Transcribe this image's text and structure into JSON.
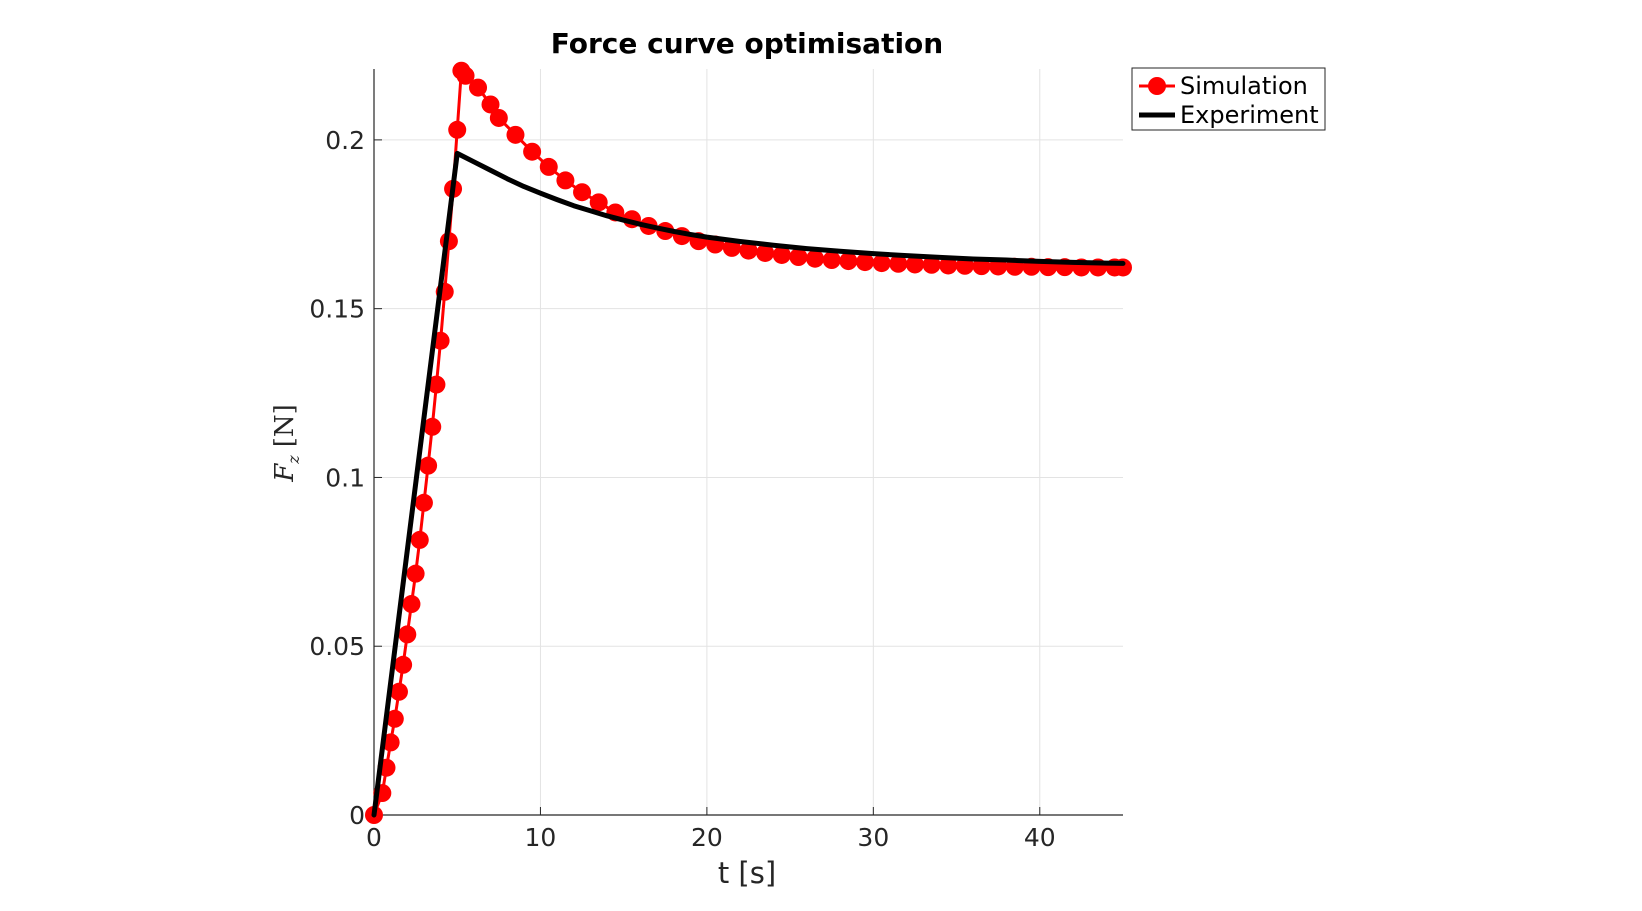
{
  "chart_data": {
    "type": "line",
    "title": "Force curve optimisation",
    "xlabel": "t [s]",
    "ylabel": "F",
    "ylabel_subscript": "z",
    "ylabel_unit": "[N]",
    "xlim": [
      0,
      45
    ],
    "ylim": [
      0,
      0.221
    ],
    "xticks": [
      0,
      10,
      20,
      30,
      40
    ],
    "xtick_labels": [
      "0",
      "10",
      "20",
      "30",
      "40"
    ],
    "yticks": [
      0,
      0.05,
      0.1,
      0.15,
      0.2
    ],
    "ytick_labels": [
      "0",
      "0.05",
      "0.1",
      "0.15",
      "0.2"
    ],
    "grid": true,
    "legend_position": "top-right",
    "series": [
      {
        "name": "Simulation",
        "color": "#ff0000",
        "marker": "circle",
        "x": [
          0,
          0.5,
          0.75,
          1.0,
          1.25,
          1.5,
          1.75,
          2.0,
          2.25,
          2.5,
          2.75,
          3.0,
          3.25,
          3.5,
          3.75,
          4.0,
          4.25,
          4.5,
          4.75,
          5.0,
          5.25,
          5.5,
          6.25,
          7.0,
          7.5,
          8.5,
          9.5,
          10.5,
          11.5,
          12.5,
          13.5,
          14.5,
          15.5,
          16.5,
          17.5,
          18.5,
          19.5,
          20.5,
          21.5,
          22.5,
          23.5,
          24.5,
          25.5,
          26.5,
          27.5,
          28.5,
          29.5,
          30.5,
          31.5,
          32.5,
          33.5,
          34.5,
          35.5,
          36.5,
          37.5,
          38.5,
          39.5,
          40.5,
          41.5,
          42.5,
          43.5,
          44.5,
          45.0
        ],
        "y": [
          0,
          0.0065,
          0.014,
          0.0215,
          0.0285,
          0.0365,
          0.0445,
          0.0535,
          0.0625,
          0.0715,
          0.0815,
          0.0925,
          0.1035,
          0.115,
          0.1275,
          0.1405,
          0.155,
          0.17,
          0.1855,
          0.203,
          0.2205,
          0.219,
          0.2155,
          0.2105,
          0.2065,
          0.2015,
          0.1965,
          0.192,
          0.188,
          0.1845,
          0.1815,
          0.1785,
          0.1765,
          0.1745,
          0.173,
          0.1715,
          0.17,
          0.169,
          0.168,
          0.1672,
          0.1665,
          0.1659,
          0.1653,
          0.1648,
          0.1644,
          0.1641,
          0.1638,
          0.1635,
          0.1633,
          0.1631,
          0.163,
          0.1628,
          0.1627,
          0.1626,
          0.1625,
          0.1624,
          0.1624,
          0.1623,
          0.1623,
          0.1622,
          0.1622,
          0.1622,
          0.1622
        ]
      },
      {
        "name": "Experiment",
        "color": "#000000",
        "marker": "none",
        "x": [
          0,
          5.0,
          6,
          7,
          8,
          9,
          10,
          11,
          12,
          13,
          14,
          15,
          16,
          17,
          18,
          19,
          20,
          22,
          24,
          26,
          28,
          30,
          32,
          34,
          36,
          38,
          40,
          42,
          44,
          45
        ],
        "y": [
          0,
          0.196,
          0.1935,
          0.191,
          0.1885,
          0.1862,
          0.1842,
          0.1823,
          0.1805,
          0.179,
          0.1775,
          0.1762,
          0.175,
          0.1739,
          0.1729,
          0.172,
          0.1712,
          0.1699,
          0.1688,
          0.1678,
          0.167,
          0.1663,
          0.1657,
          0.1652,
          0.1647,
          0.1644,
          0.164,
          0.1637,
          0.1635,
          0.1634
        ]
      }
    ]
  }
}
